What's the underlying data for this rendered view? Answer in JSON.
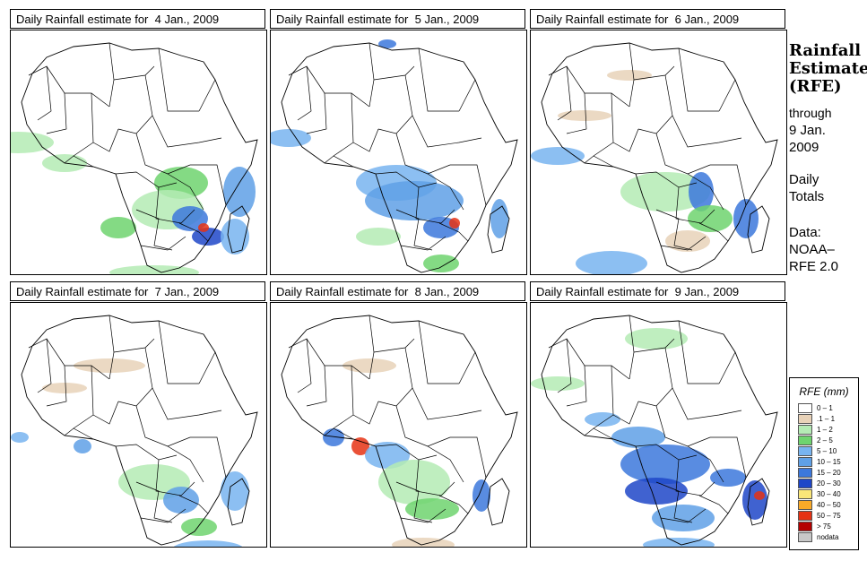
{
  "panels": [
    {
      "title": "Daily Rainfall estimate for  4 Jan., 2009"
    },
    {
      "title": "Daily Rainfall estimate for  5 Jan., 2009"
    },
    {
      "title": "Daily Rainfall estimate for  6 Jan., 2009"
    },
    {
      "title": "Daily Rainfall estimate for  7 Jan., 2009"
    },
    {
      "title": "Daily Rainfall estimate for  8 Jan., 2009"
    },
    {
      "title": "Daily Rainfall estimate for  9 Jan., 2009"
    }
  ],
  "sidebar": {
    "title_line1": "Rainfall",
    "title_line2": "Estimate",
    "title_line3": "(RFE)",
    "through_line1": "through",
    "through_line2": "9 Jan.",
    "through_line3": "2009",
    "daily_line1": "Daily",
    "daily_line2": "Totals",
    "data_line1": "Data:",
    "data_line2": "NOAA–",
    "data_line3": "RFE 2.0"
  },
  "legend": {
    "title": "RFE (mm)",
    "items": [
      {
        "label": "0 – 1",
        "color": "#ffffff"
      },
      {
        "label": ".1 – 1",
        "color": "#e8d2b8"
      },
      {
        "label": "1 – 2",
        "color": "#b4ebb4"
      },
      {
        "label": "2 – 5",
        "color": "#6ed46e"
      },
      {
        "label": "5 – 10",
        "color": "#78b4f0"
      },
      {
        "label": "10 – 15",
        "color": "#5fa0e6"
      },
      {
        "label": "15 – 20",
        "color": "#3c78dc"
      },
      {
        "label": "20 – 30",
        "color": "#1e46c8"
      },
      {
        "label": "30 – 40",
        "color": "#fae678"
      },
      {
        "label": "40 – 50",
        "color": "#faaa28"
      },
      {
        "label": "50 – 75",
        "color": "#e63214"
      },
      {
        "label": "> 75",
        "color": "#b40000"
      },
      {
        "label": "nodata",
        "color": "#c8c8c8"
      }
    ]
  }
}
